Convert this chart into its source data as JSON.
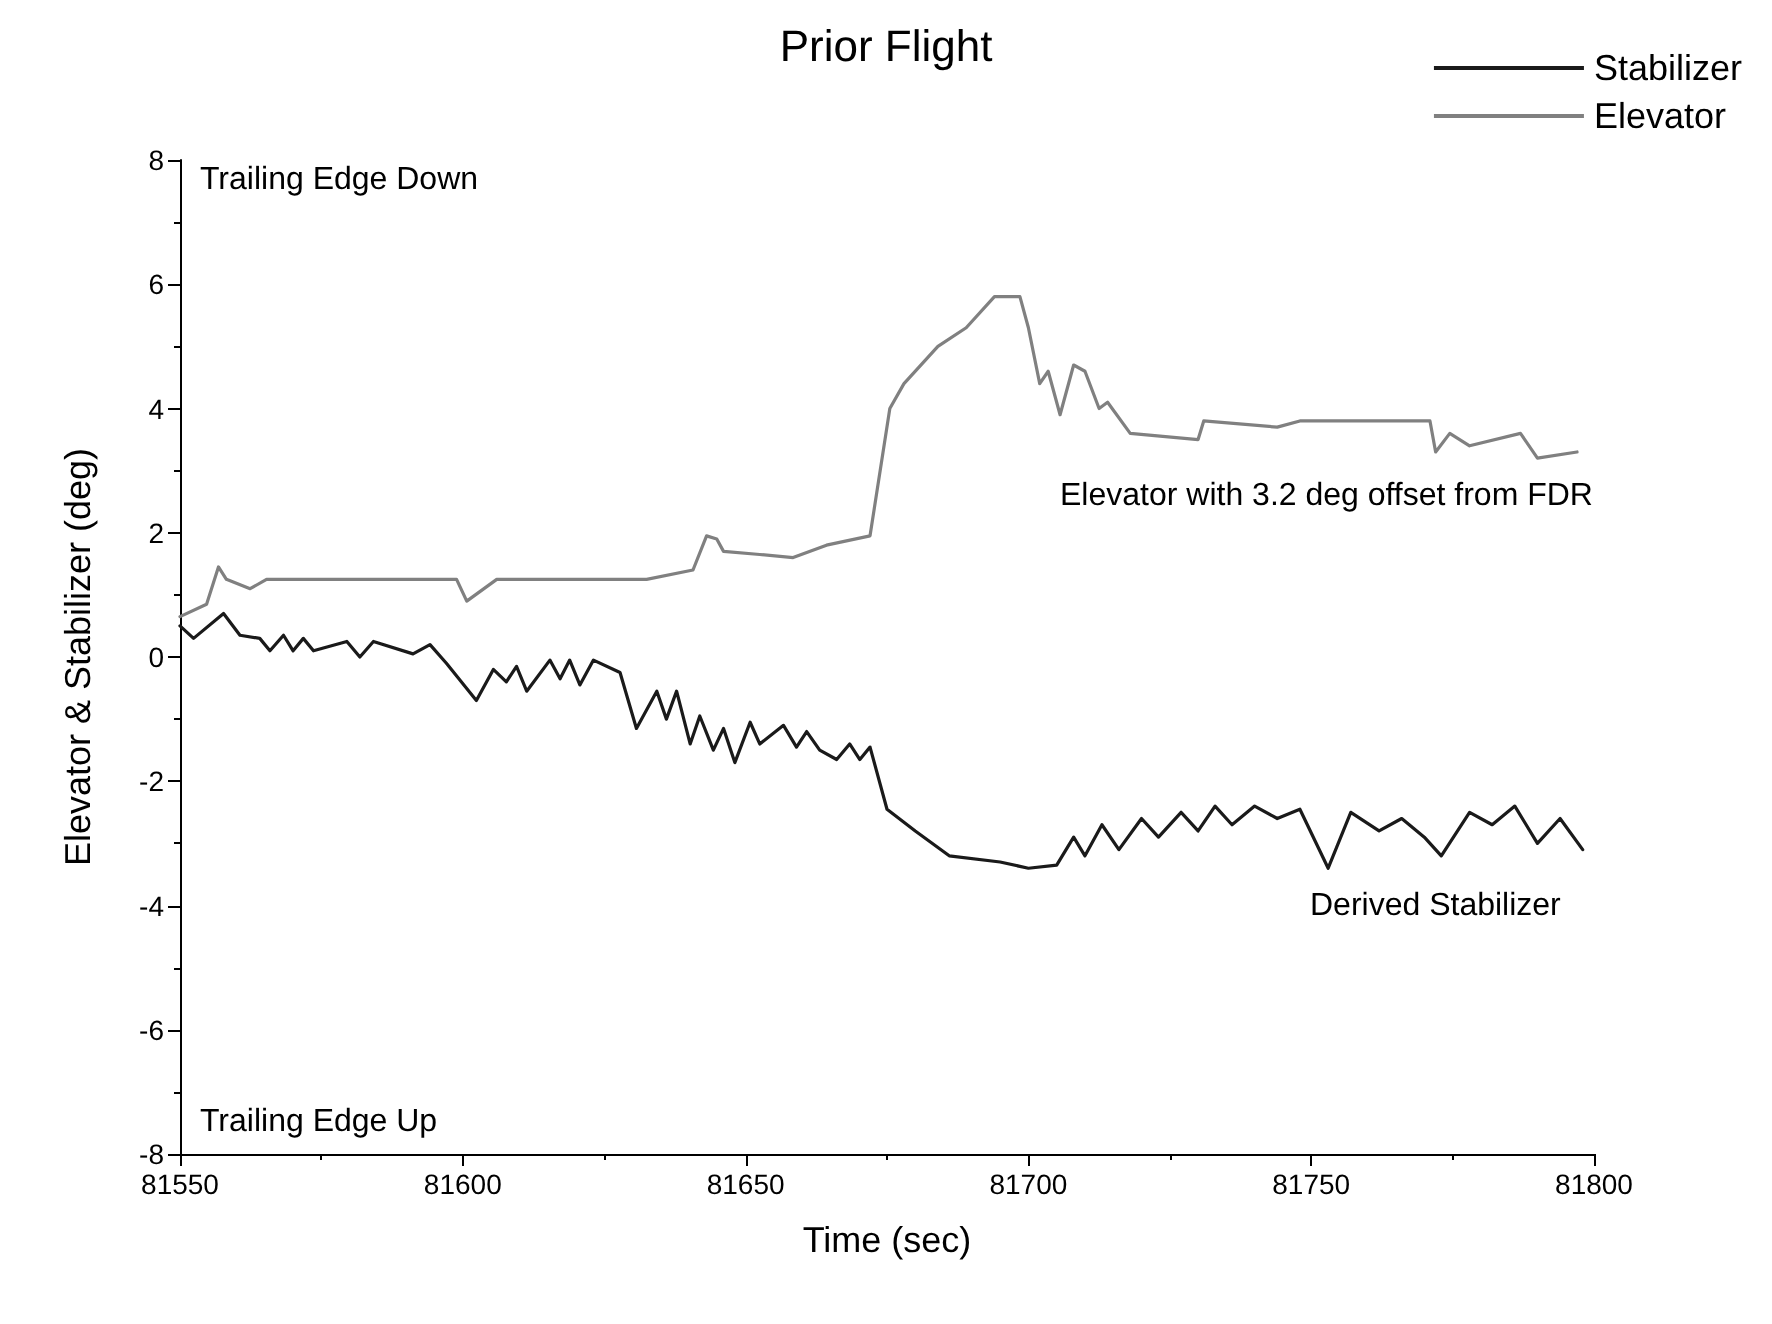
{
  "chart_data": {
    "type": "line",
    "title": "Prior Flight",
    "xlabel": "Time (sec)",
    "ylabel": "Elevator & Stabilizer (deg)",
    "xlim": [
      81550,
      81800
    ],
    "xticks": [
      81550,
      81600,
      81650,
      81700,
      81750,
      81800
    ],
    "ylim": [
      -8,
      8
    ],
    "yticks": [
      -8,
      -6,
      -4,
      -2,
      0,
      2,
      4,
      6,
      8
    ],
    "grid": false,
    "legend": "top right",
    "marker": "none",
    "line_style": "solid",
    "annotations": [
      "Trailing Edge Down",
      "Trailing Edge Up",
      "Elevator with 3.2 deg offset from FDR",
      "Derived Stabilizer"
    ],
    "series": [
      {
        "name": "Stabilizer",
        "color": "#1a1a1a",
        "x": [
          81550,
          81552.4,
          81557.7,
          81560.6,
          81564.1,
          81565.9,
          81568.3,
          81570,
          81571.8,
          81573.6,
          81579.5,
          81581.8,
          81584.2,
          81591.2,
          81594.2,
          81597.1,
          81602.4,
          81605.4,
          81607.7,
          81609.5,
          81611.3,
          81615.4,
          81617.2,
          81618.9,
          81620.7,
          81623.1,
          81627.8,
          81630.7,
          81634.3,
          81636,
          81637.8,
          81640.2,
          81641.9,
          81644.3,
          81646.1,
          81648.1,
          81650.8,
          81652.5,
          81656.7,
          81659,
          81660.8,
          81663.1,
          81666.1,
          81668.4,
          81670.2,
          81672,
          81675,
          81680,
          81686,
          81695,
          81700,
          81705,
          81708,
          81710,
          81713,
          81716,
          81720,
          81723,
          81727,
          81730,
          81733,
          81736,
          81740,
          81744,
          81748,
          81753,
          81757,
          81762,
          81766,
          81770,
          81773,
          81778,
          81782,
          81786,
          81790,
          81794,
          81798
        ],
        "values": [
          0.5,
          0.3,
          0.7,
          0.35,
          0.3,
          0.1,
          0.35,
          0.1,
          0.3,
          0.1,
          0.25,
          0,
          0.25,
          0.05,
          0.2,
          -0.1,
          -0.7,
          -0.2,
          -0.4,
          -0.15,
          -0.55,
          -0.05,
          -0.35,
          -0.05,
          -0.45,
          -0.05,
          -0.25,
          -1.15,
          -0.55,
          -1.0,
          -0.55,
          -1.4,
          -0.95,
          -1.5,
          -1.15,
          -1.7,
          -1.05,
          -1.4,
          -1.1,
          -1.45,
          -1.2,
          -1.5,
          -1.65,
          -1.4,
          -1.65,
          -1.45,
          -2.45,
          -2.8,
          -3.2,
          -3.3,
          -3.4,
          -3.35,
          -2.9,
          -3.2,
          -2.7,
          -3.1,
          -2.6,
          -2.9,
          -2.5,
          -2.8,
          -2.4,
          -2.7,
          -2.4,
          -2.6,
          -2.45,
          -3.4,
          -2.5,
          -2.8,
          -2.6,
          -2.9,
          -3.2,
          -2.5,
          -2.7,
          -2.4,
          -3.0,
          -2.6,
          -3.1
        ]
      },
      {
        "name": "Elevator",
        "color": "#808080",
        "x": [
          81550,
          81554.7,
          81556.8,
          81558.2,
          81562.4,
          81565.3,
          81598.9,
          81600.7,
          81606,
          81626.6,
          81632.5,
          81640.7,
          81643.1,
          81644.9,
          81646.1,
          81652.5,
          81658.4,
          81664.3,
          81672,
          81675.5,
          81678,
          81684,
          81689,
          81694,
          81698.5,
          81700,
          81702,
          81703.5,
          81705.6,
          81708,
          81710,
          81712.5,
          81714,
          81718,
          81730,
          81731,
          81744,
          81748,
          81771,
          81772,
          81774.5,
          81778,
          81787,
          81790,
          81797
        ],
        "values": [
          0.65,
          0.85,
          1.45,
          1.25,
          1.1,
          1.25,
          1.25,
          0.9,
          1.25,
          1.25,
          1.25,
          1.4,
          1.95,
          1.9,
          1.7,
          1.65,
          1.6,
          1.8,
          1.95,
          4.0,
          4.4,
          5.0,
          5.3,
          5.8,
          5.8,
          5.3,
          4.4,
          4.6,
          3.9,
          4.7,
          4.6,
          4.0,
          4.1,
          3.6,
          3.5,
          3.8,
          3.7,
          3.8,
          3.8,
          3.3,
          3.6,
          3.4,
          3.6,
          3.2,
          3.3
        ]
      }
    ]
  }
}
